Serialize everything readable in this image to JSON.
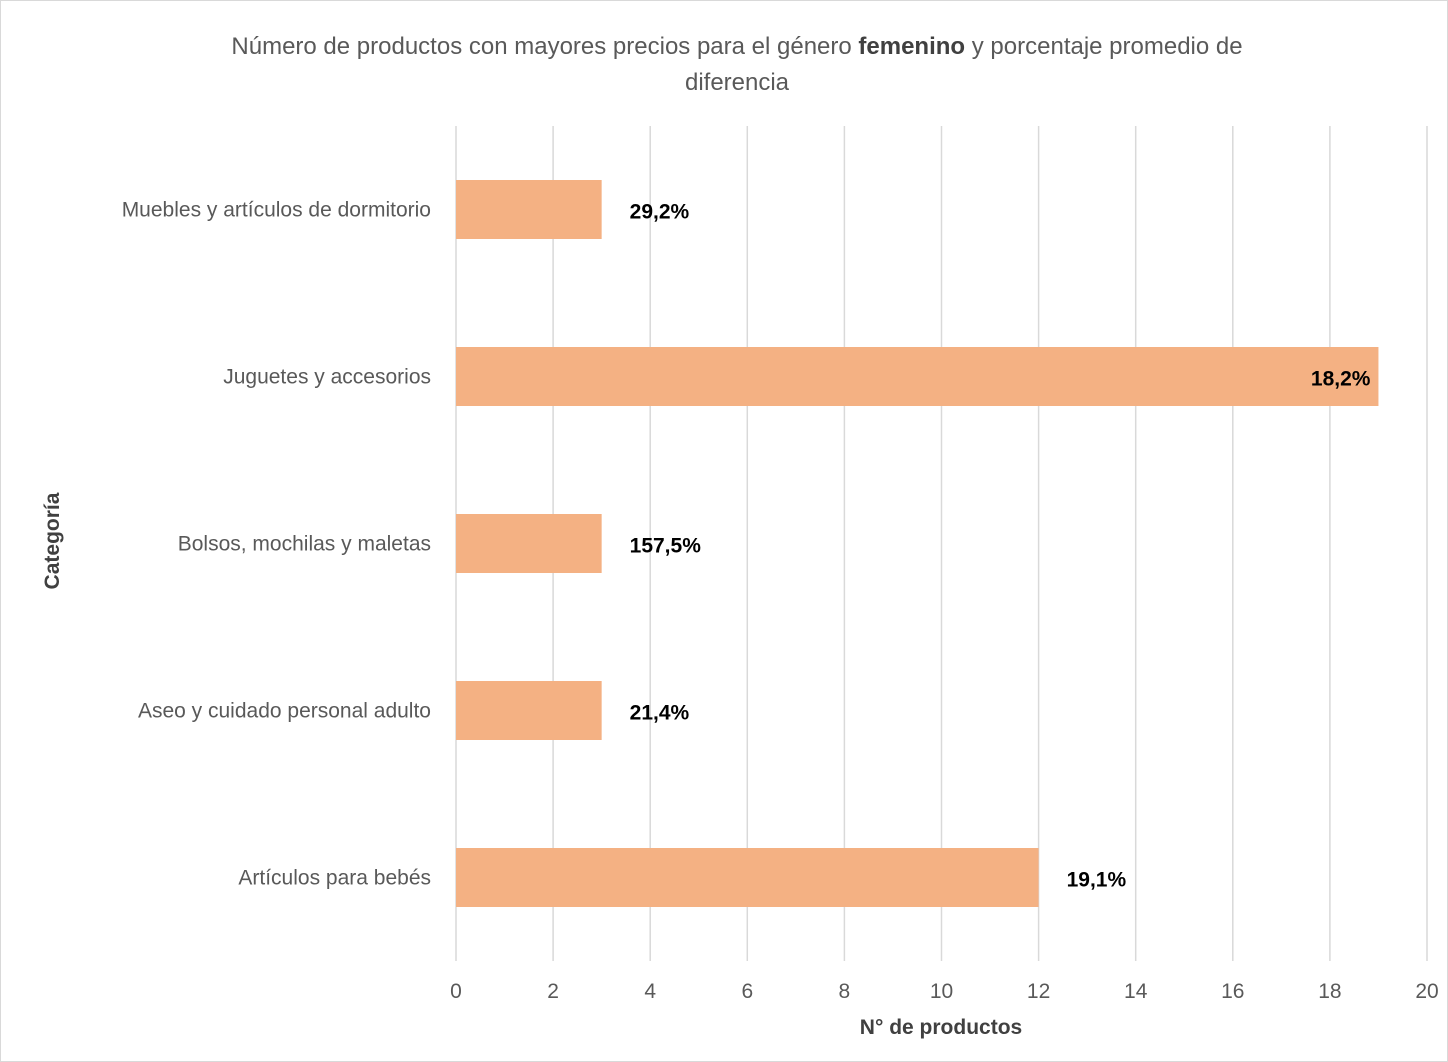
{
  "chart_data": {
    "type": "bar",
    "orientation": "horizontal",
    "title": {
      "before": "Número de productos con mayores precios para el género ",
      "emphasis": "femenino",
      "after_line1": " y porcentaje promedio de",
      "line2": "diferencia"
    },
    "xlabel": "N° de productos",
    "ylabel": "Categoría",
    "xlim": [
      0,
      20
    ],
    "xticks": [
      "0",
      "2",
      "4",
      "6",
      "8",
      "10",
      "12",
      "14",
      "16",
      "18",
      "20"
    ],
    "grid": "vertical",
    "categories": [
      "Muebles y artículos de dormitorio",
      "Juguetes y accesorios",
      "Bolsos, mochilas y maletas",
      "Aseo y cuidado personal adulto",
      "Artículos para bebés"
    ],
    "values": [
      3,
      19,
      3,
      3,
      12
    ],
    "data_labels": [
      "29,2%",
      "18,2%",
      "157,5%",
      "21,4%",
      "19,1%"
    ],
    "bar_color": "#f4b183",
    "gridline_color": "#d9d9d9"
  }
}
